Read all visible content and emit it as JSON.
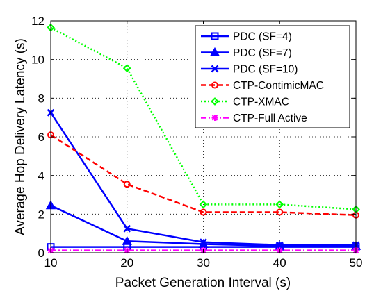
{
  "chart_data": {
    "type": "line",
    "title": "",
    "xlabel": "Packet Generation Interval (s)",
    "ylabel": "Average Hop Delivery Latency (s)",
    "x": [
      10,
      20,
      30,
      40,
      50
    ],
    "xlim": [
      10,
      50
    ],
    "ylim": [
      0,
      12
    ],
    "xticks": [
      "10",
      "20",
      "30",
      "40",
      "50"
    ],
    "yticks": [
      "0",
      "2",
      "4",
      "6",
      "8",
      "10",
      "12"
    ],
    "grid": true,
    "legend_position": "top-right",
    "series": [
      {
        "name": "PDC (SF=4)",
        "values": [
          0.3,
          0.3,
          0.3,
          0.3,
          0.3
        ],
        "color": "#0000ff",
        "dash": "solid",
        "marker": "square"
      },
      {
        "name": "PDC (SF=7)",
        "values": [
          2.45,
          0.6,
          0.45,
          0.35,
          0.35
        ],
        "color": "#0000ff",
        "dash": "solid",
        "marker": "triangle"
      },
      {
        "name": "PDC (SF=10)",
        "values": [
          7.25,
          1.25,
          0.55,
          0.4,
          0.4
        ],
        "color": "#0000ff",
        "dash": "solid",
        "marker": "x"
      },
      {
        "name": "CTP-ContimicMAC",
        "values": [
          6.1,
          3.55,
          2.1,
          2.1,
          1.95
        ],
        "color": "#ff0000",
        "dash": "dashed",
        "marker": "circle"
      },
      {
        "name": "CTP-XMAC",
        "values": [
          11.65,
          9.55,
          2.5,
          2.5,
          2.25
        ],
        "color": "#00ff00",
        "dash": "dotted",
        "marker": "diamond"
      },
      {
        "name": "CTP-Full Active",
        "values": [
          0.12,
          0.12,
          0.12,
          0.12,
          0.12
        ],
        "color": "#ff00ff",
        "dash": "dashdot",
        "marker": "star"
      }
    ]
  }
}
